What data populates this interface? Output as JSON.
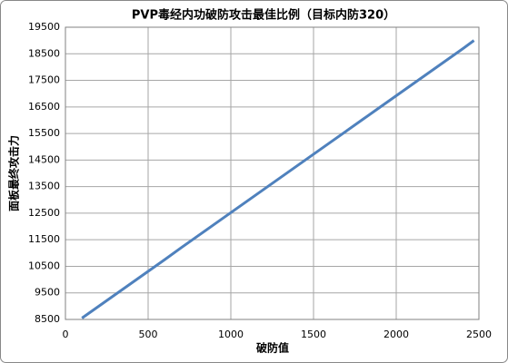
{
  "chart_data": {
    "type": "line",
    "title": "PVP毒经内功破防攻击最佳比例（目标内防320）",
    "x_label": "破防值",
    "y_label": "面板最终攻击力",
    "x": [
      100,
      200,
      300,
      400,
      500,
      600,
      700,
      800,
      900,
      1000,
      1100,
      1200,
      1300,
      1400,
      1500,
      1600,
      1700,
      1800,
      1900,
      2000,
      2100,
      2200,
      2300,
      2400,
      2470
    ],
    "series": [
      {
        "color": "#4f81bd",
        "values": [
          8550,
          8990,
          9430,
          9870,
          10310,
          10750,
          11200,
          11640,
          12080,
          12520,
          12960,
          13400,
          13840,
          14280,
          14720,
          15160,
          15600,
          16040,
          16480,
          16920,
          17360,
          17800,
          18240,
          18680,
          19000
        ]
      }
    ],
    "xlim": [
      0,
      2500
    ],
    "xticks": [
      0,
      500,
      1000,
      1500,
      2000,
      2500
    ],
    "ylim": [
      8500,
      19500
    ],
    "yticks": [
      8500,
      9500,
      10500,
      11500,
      12500,
      13500,
      14500,
      15500,
      16500,
      17500,
      18500,
      19500
    ],
    "grid": true
  }
}
